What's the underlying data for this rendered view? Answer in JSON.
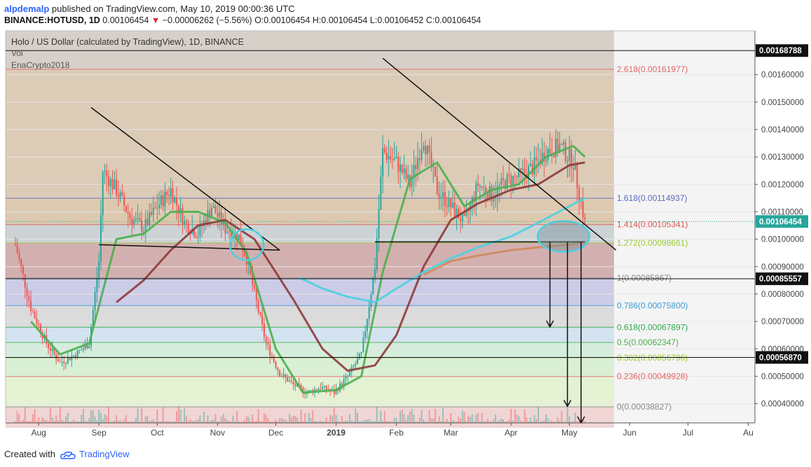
{
  "header": {
    "author": "alpdemalp",
    "published_text": "published on TradingView.com, May 10, 2019 00:00:36 UTC",
    "symbol": "BINANCE:HOTUSD, 1D",
    "last": "0.00106454",
    "change_arrow": "▼",
    "change": "−0.00006262 (−5.56%)",
    "ohlc": "O:0.00106454 H:0.00106454 L:0.00106452 C:0.00106454"
  },
  "legend": {
    "title": "Holo / US Dollar (calculated by TradingView), 1D, BINANCE",
    "vol": "Vol",
    "indicator": "EnaCrypto2018"
  },
  "footer": {
    "created_with": "Created with",
    "brand": "TradingView"
  },
  "colors": {
    "up": "#26a69a",
    "down": "#ef5350",
    "ema_fast": "#4caf50",
    "ema_mid": "#8d3b3b",
    "ema_slow": "#4dd0e1",
    "ema_long": "#d08a5e",
    "accent": "#2962ff"
  },
  "chart_data": {
    "type": "line",
    "title": "Holo / US Dollar (calculated by TradingView), 1D, BINANCE",
    "x_ticks": [
      "Aug",
      "Sep",
      "Oct",
      "Nov",
      "Dec",
      "2019",
      "Feb",
      "Mar",
      "Apr",
      "May",
      "Jun",
      "Jul",
      "Au"
    ],
    "y_ticks": [
      "0.00160000",
      "0.00150000",
      "0.00140000",
      "0.00130000",
      "0.00120000",
      "0.00110000",
      "0.00100000",
      "0.00090000",
      "0.00080000",
      "0.00070000",
      "0.00060000",
      "0.00050000",
      "0.00040000"
    ],
    "ylim": [
      0.00033,
      0.00176
    ],
    "price_badges": [
      {
        "value": "0.00168788",
        "style": "dark"
      },
      {
        "value": "0.00106454",
        "style": "teal"
      },
      {
        "value": "0.00085557",
        "style": "dark"
      },
      {
        "value": "0.00056870",
        "style": "dark"
      }
    ],
    "fib_levels": [
      {
        "label": "2.618(0.00161977)",
        "value": 0.00161977,
        "color": "#e06666"
      },
      {
        "label": "1.618(0.00114937)",
        "value": 0.00114937,
        "color": "#5c6bc0"
      },
      {
        "label": "1.414(0.00105341)",
        "value": 0.00105341,
        "color": "#d9534f"
      },
      {
        "label": "1.272(0.00098661)",
        "value": 0.00098661,
        "color": "#9acd32"
      },
      {
        "label": "1(0.00085867)",
        "value": 0.00085867,
        "color": "#888888"
      },
      {
        "label": "0.786(0.00075800)",
        "value": 0.000758,
        "color": "#3d9bd6"
      },
      {
        "label": "0.618(0.00067897)",
        "value": 0.00067897,
        "color": "#2eaa4f"
      },
      {
        "label": "0.5(0.00062347)",
        "value": 0.00062347,
        "color": "#4caf50"
      },
      {
        "label": "0.382(0.00056796)",
        "value": 0.00056796,
        "color": "#9acd32"
      },
      {
        "label": "0.236(0.00049928)",
        "value": 0.00049928,
        "color": "#e06666"
      },
      {
        "label": "0(0.00038827)",
        "value": 0.00038827,
        "color": "#888888"
      }
    ],
    "price_series": {
      "name": "HOTUSD",
      "x": [
        "Jul 20",
        "Jul 28",
        "Aug 5",
        "Aug 12",
        "Aug 20",
        "Aug 27",
        "Sep 1",
        "Sep 3",
        "Sep 10",
        "Sep 17",
        "Sep 24",
        "Oct 1",
        "Oct 8",
        "Oct 15",
        "Oct 22",
        "Oct 29",
        "Nov 5",
        "Nov 12",
        "Nov 16",
        "Nov 20",
        "Nov 26",
        "Dec 3",
        "Dec 10",
        "Dec 17",
        "Dec 24",
        "Dec 31",
        "Jan 7",
        "Jan 14",
        "Jan 21",
        "Jan 25",
        "Feb 1",
        "Feb 8",
        "Feb 15",
        "Feb 22",
        "Mar 1",
        "Mar 8",
        "Mar 15",
        "Mar 22",
        "Mar 29",
        "Apr 5",
        "Apr 12",
        "Apr 19",
        "Apr 26",
        "May 3",
        "May 9"
      ],
      "y": [
        0.00098,
        0.00075,
        0.00062,
        0.00055,
        0.00058,
        0.00062,
        0.00092,
        0.00125,
        0.00118,
        0.00108,
        0.00104,
        0.00112,
        0.00118,
        0.00106,
        0.00102,
        0.00112,
        0.00104,
        0.00101,
        0.00093,
        0.0008,
        0.00062,
        0.00051,
        0.00047,
        0.00044,
        0.00046,
        0.00044,
        0.0005,
        0.00058,
        0.0009,
        0.00132,
        0.00128,
        0.0012,
        0.00137,
        0.00118,
        0.00112,
        0.00106,
        0.0012,
        0.00116,
        0.00121,
        0.00123,
        0.00126,
        0.00132,
        0.00134,
        0.00128,
        0.00106
      ]
    },
    "series": [
      {
        "x": [
          "Jul 28",
          "Aug 12",
          "Aug 27",
          "Sep 10",
          "Sep 24",
          "Oct 8",
          "Oct 22",
          "Nov 5",
          "Nov 16",
          "Dec 1",
          "Dec 15",
          "Jan 1",
          "Jan 14",
          "Jan 25",
          "Feb 8",
          "Feb 22",
          "Mar 8",
          "Mar 22",
          "Apr 5",
          "Apr 19",
          "May 3",
          "May 9"
        ],
        "y": [
          0.0007,
          0.00058,
          0.00062,
          0.001,
          0.00102,
          0.0011,
          0.0011,
          0.00106,
          0.00095,
          0.0006,
          0.00044,
          0.00045,
          0.0005,
          0.00088,
          0.00122,
          0.00128,
          0.00112,
          0.00118,
          0.0012,
          0.0013,
          0.00134,
          0.0013
        ]
      },
      {
        "x": [
          "Sep 10",
          "Sep 24",
          "Oct 8",
          "Oct 22",
          "Nov 5",
          "Nov 20",
          "Dec 10",
          "Dec 25",
          "Jan 7",
          "Jan 21",
          "Feb 1",
          "Feb 15",
          "Mar 1",
          "Mar 15",
          "Apr 1",
          "Apr 15",
          "May 1",
          "May 9"
        ],
        "y": [
          0.00077,
          0.00085,
          0.00096,
          0.00105,
          0.00107,
          0.001,
          0.00078,
          0.0006,
          0.00052,
          0.00054,
          0.00065,
          0.0009,
          0.00107,
          0.00113,
          0.00118,
          0.0012,
          0.00127,
          0.00128
        ]
      },
      {
        "x": [
          "Dec 13",
          "Dec 25",
          "Jan 7",
          "Jan 21",
          "Feb 1",
          "Feb 15",
          "Mar 1",
          "Mar 15",
          "Apr 1",
          "Apr 15",
          "May 1",
          "May 9"
        ],
        "y": [
          0.00086,
          0.00082,
          0.00079,
          0.00077,
          0.00082,
          0.00088,
          0.00093,
          0.00097,
          0.00101,
          0.00106,
          0.00112,
          0.00115
        ]
      },
      {
        "x": [
          "Feb 15",
          "Mar 1",
          "Mar 15",
          "Apr 1",
          "Apr 15",
          "May 1",
          "May 9"
        ],
        "y": [
          0.00087,
          0.00092,
          0.00094,
          0.00096,
          0.00097,
          0.00098,
          0.00099
        ]
      }
    ],
    "trendlines": [
      {
        "x": [
          "Aug 28",
          "Dec 3"
        ],
        "y": [
          0.00148,
          0.00096
        ]
      },
      {
        "x": [
          "Sep 1",
          "Dec 3"
        ],
        "y": [
          0.00098,
          0.00096
        ]
      },
      {
        "x": [
          "Jan 25",
          "May 25"
        ],
        "y": [
          0.00166,
          0.00096
        ]
      },
      {
        "x": [
          "Jan 21",
          "May 9"
        ],
        "y": [
          0.00099,
          0.00099
        ]
      }
    ],
    "projection_arrows": [
      {
        "x": "Apr 21",
        "y_from": 0.00099,
        "y_to": 0.00068
      },
      {
        "x": "Apr 30",
        "y_from": 0.00099,
        "y_to": 0.00039
      },
      {
        "x": "May 7",
        "y_from": 0.00099,
        "y_to": 0.00033
      }
    ],
    "highlight_ellipses": [
      {
        "x": "Nov 16",
        "y": 0.00098
      },
      {
        "x": "Apr 28",
        "y": 0.00101
      }
    ],
    "grid": true
  }
}
